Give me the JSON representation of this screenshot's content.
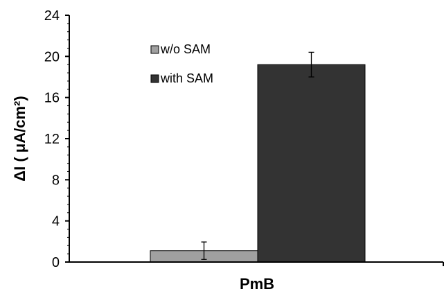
{
  "chart_data": {
    "type": "bar",
    "categories": [
      "PmB"
    ],
    "xlabel": "PmB",
    "ylabel": "ΔI ( μA/cm²)",
    "ylim": [
      0,
      24
    ],
    "yticks": [
      0,
      4,
      8,
      12,
      16,
      20,
      24
    ],
    "grid": false,
    "legend_position": "top-left inside plot",
    "series": [
      {
        "name": "w/o SAM",
        "values": [
          1.1
        ],
        "errors": [
          0.85
        ],
        "color": "#a0a0a0"
      },
      {
        "name": "with SAM",
        "values": [
          19.2
        ],
        "errors": [
          1.2
        ],
        "color": "#333333"
      }
    ]
  }
}
